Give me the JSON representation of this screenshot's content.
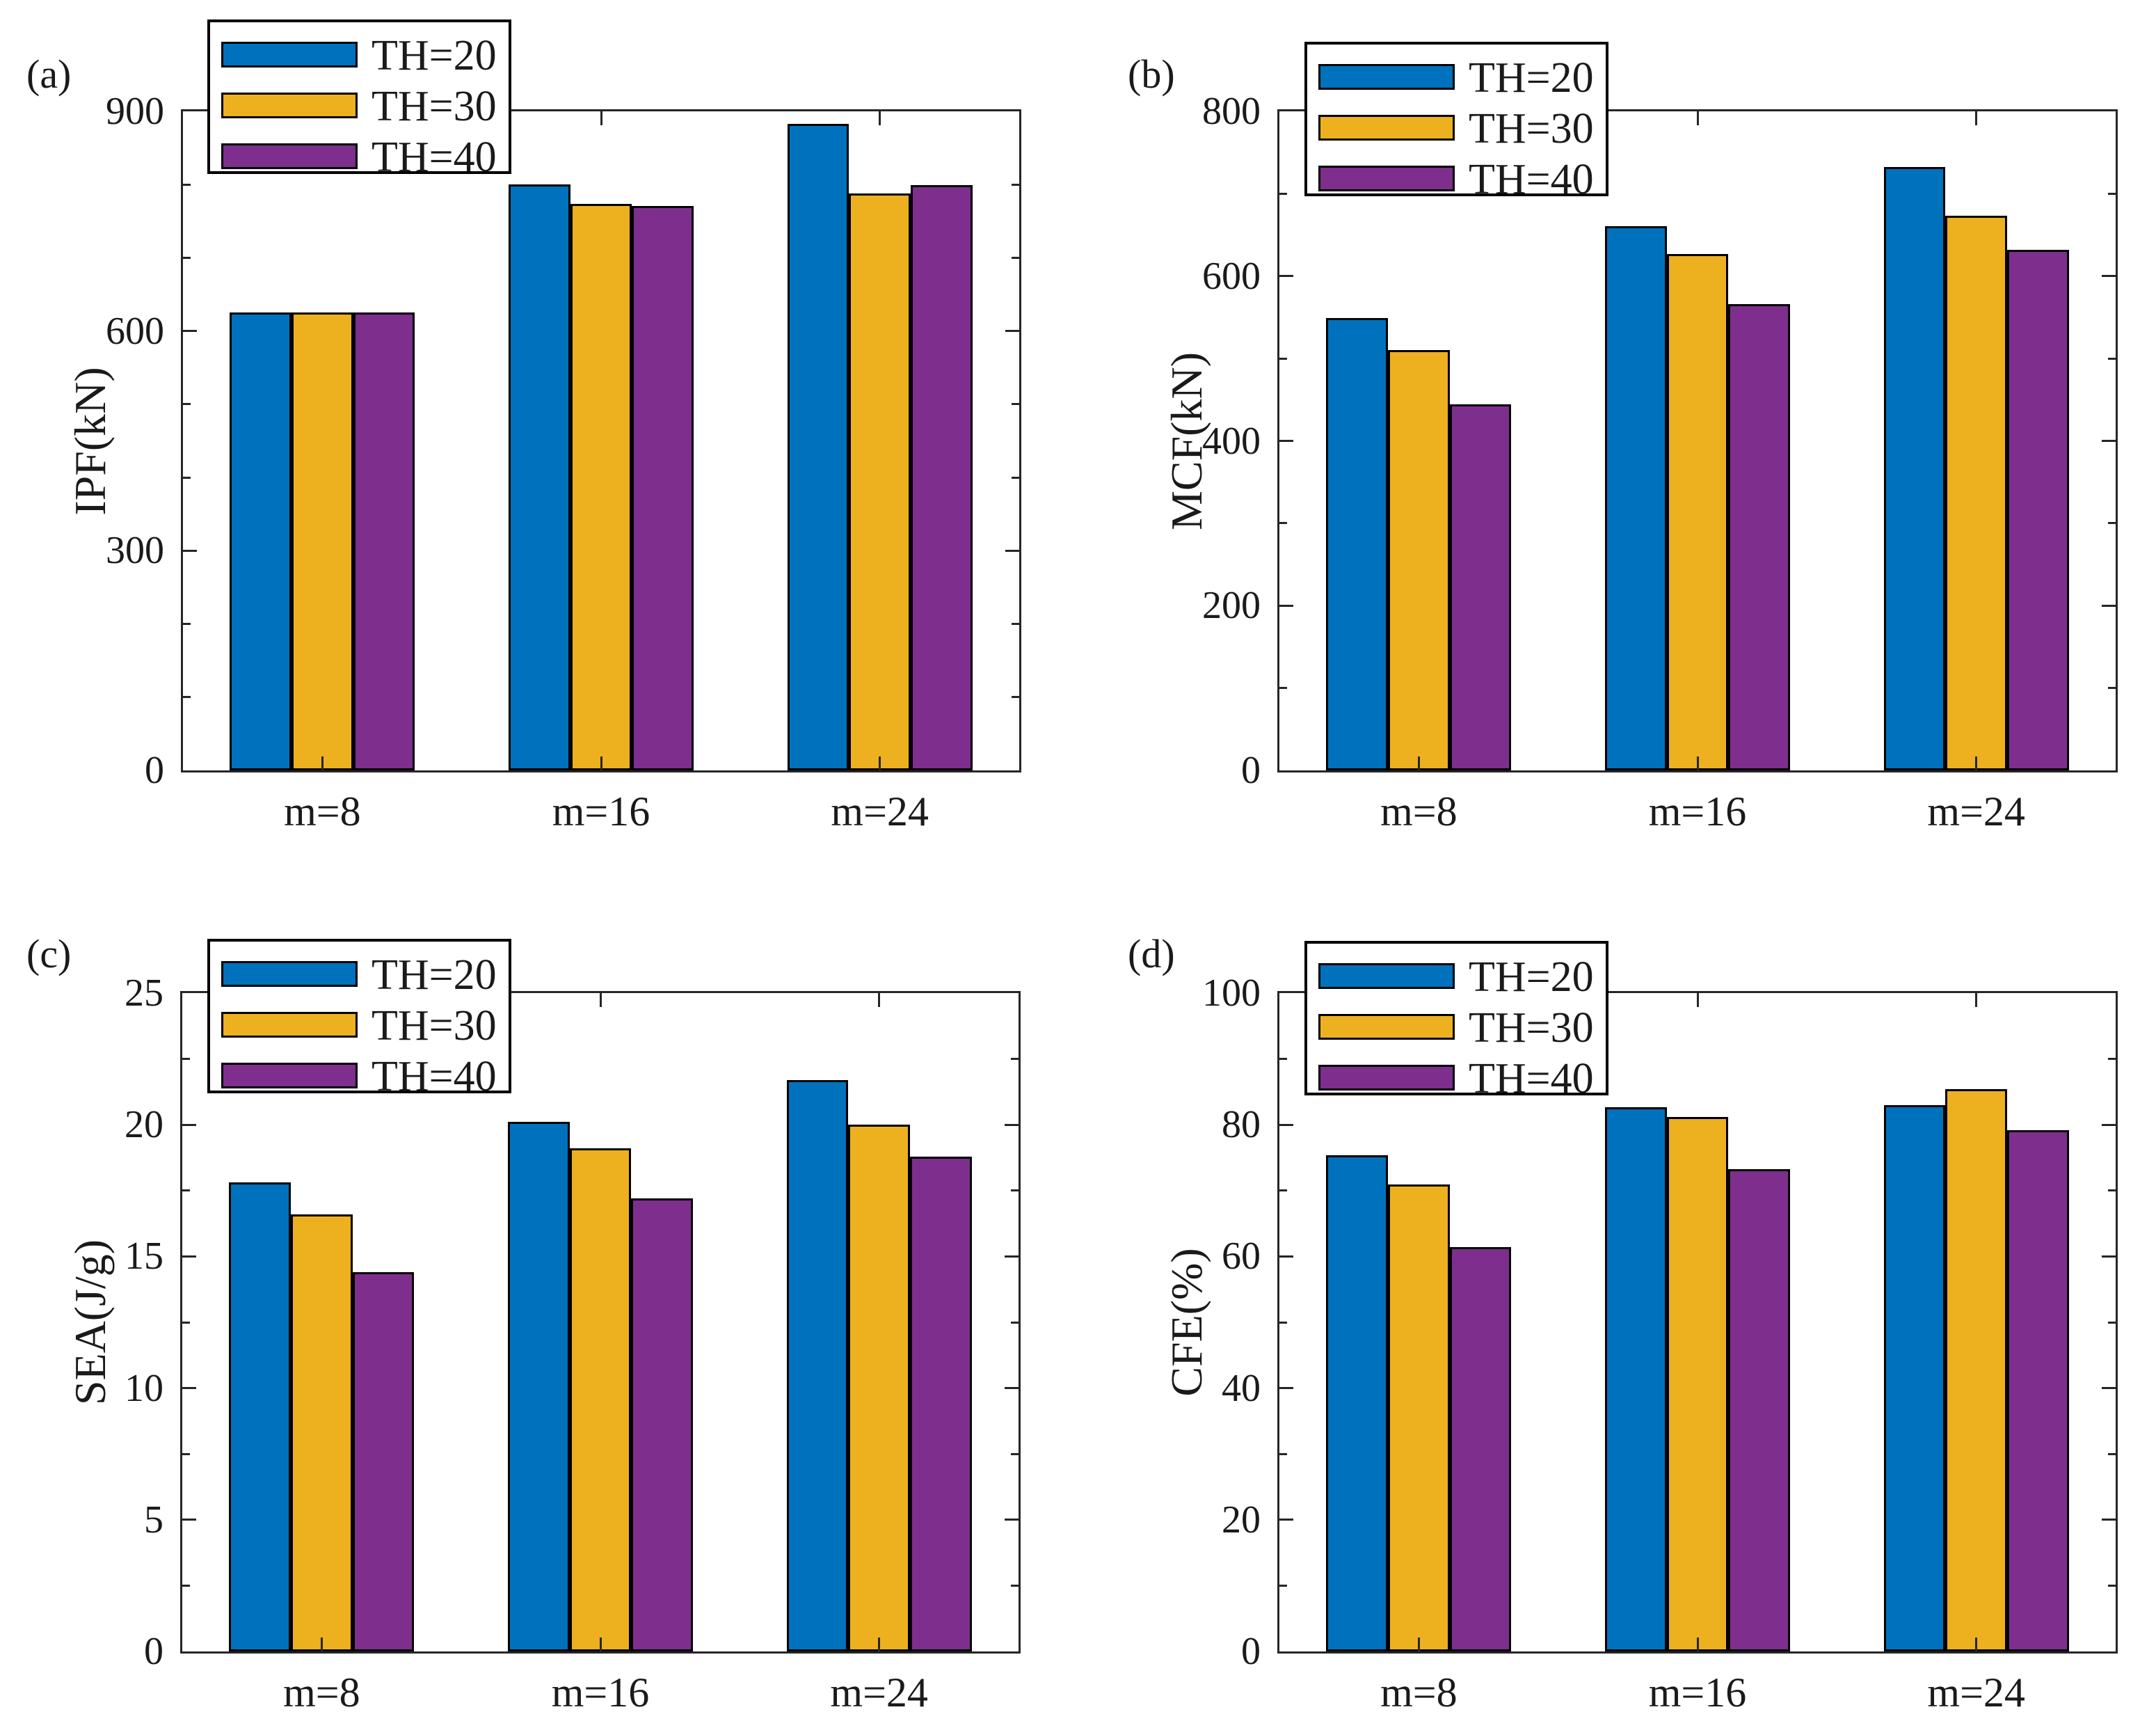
{
  "figure_title": "",
  "legend_labels": [
    "TH=20",
    "TH=30",
    "TH=40"
  ],
  "colors": {
    "TH=20": "#0072BD",
    "TH=30": "#EDB120",
    "TH=40": "#7E2F8E",
    "bar_edge": "#000000",
    "spine": "#262626",
    "text": "#1a1a1a"
  },
  "chart_data": [
    {
      "id": "a",
      "type": "bar",
      "panel_label": "(a)",
      "ylabel": "IPF(kN)",
      "ylim": [
        0,
        900
      ],
      "yticks": [
        0,
        300,
        600,
        900
      ],
      "ytick_labels": [
        "0",
        "300",
        "600",
        "900"
      ],
      "yminorticks": [
        100,
        200,
        400,
        500,
        700,
        800
      ],
      "categories": [
        "m=8",
        "m=16",
        "m=24"
      ],
      "grid": false,
      "legend_position": "northwest",
      "series": [
        {
          "name": "TH=20",
          "color": "#0072BD",
          "values": [
            625,
            800,
            883
          ]
        },
        {
          "name": "TH=30",
          "color": "#EDB120",
          "values": [
            625,
            774,
            788
          ]
        },
        {
          "name": "TH=40",
          "color": "#7E2F8E",
          "values": [
            625,
            771,
            799
          ]
        }
      ]
    },
    {
      "id": "b",
      "type": "bar",
      "panel_label": "(b)",
      "ylabel": "MCF(kN)",
      "ylim": [
        0,
        800
      ],
      "yticks": [
        0,
        200,
        400,
        600,
        800
      ],
      "ytick_labels": [
        "0",
        "200",
        "400",
        "600",
        "800"
      ],
      "yminorticks": [
        100,
        300,
        500,
        700
      ],
      "categories": [
        "m=8",
        "m=16",
        "m=24"
      ],
      "grid": false,
      "legend_position": "northwest",
      "series": [
        {
          "name": "TH=20",
          "color": "#0072BD",
          "values": [
            549,
            661,
            732
          ]
        },
        {
          "name": "TH=30",
          "color": "#EDB120",
          "values": [
            510,
            627,
            673
          ]
        },
        {
          "name": "TH=40",
          "color": "#7E2F8E",
          "values": [
            444,
            566,
            632
          ]
        }
      ]
    },
    {
      "id": "c",
      "type": "bar",
      "panel_label": "(c)",
      "ylabel": "SEA(J/g)",
      "ylim": [
        0,
        25
      ],
      "yticks": [
        0,
        5,
        10,
        15,
        20,
        25
      ],
      "ytick_labels": [
        "0",
        "5",
        "10",
        "15",
        "20",
        "25"
      ],
      "yminorticks": [
        2.5,
        7.5,
        12.5,
        17.5,
        22.5
      ],
      "categories": [
        "m=8",
        "m=16",
        "m=24"
      ],
      "grid": false,
      "legend_position": "northwest",
      "series": [
        {
          "name": "TH=20",
          "color": "#0072BD",
          "values": [
            17.8,
            20.1,
            21.7
          ]
        },
        {
          "name": "TH=30",
          "color": "#EDB120",
          "values": [
            16.6,
            19.1,
            20.0
          ]
        },
        {
          "name": "TH=40",
          "color": "#7E2F8E",
          "values": [
            14.4,
            17.2,
            18.8
          ]
        }
      ]
    },
    {
      "id": "d",
      "type": "bar",
      "panel_label": "(d)",
      "ylabel": "CFE(%)",
      "ylim": [
        0,
        100
      ],
      "yticks": [
        0,
        20,
        40,
        60,
        80,
        100
      ],
      "ytick_labels": [
        "0",
        "20",
        "40",
        "60",
        "80",
        "100"
      ],
      "yminorticks": [
        10,
        30,
        50,
        70,
        90
      ],
      "categories": [
        "m=8",
        "m=16",
        "m=24"
      ],
      "grid": false,
      "legend_position": "northwest",
      "series": [
        {
          "name": "TH=20",
          "color": "#0072BD",
          "values": [
            75.4,
            82.7,
            83.0
          ]
        },
        {
          "name": "TH=30",
          "color": "#EDB120",
          "values": [
            70.9,
            81.2,
            85.4
          ]
        },
        {
          "name": "TH=40",
          "color": "#7E2F8E",
          "values": [
            61.4,
            73.3,
            79.2
          ]
        }
      ]
    }
  ]
}
